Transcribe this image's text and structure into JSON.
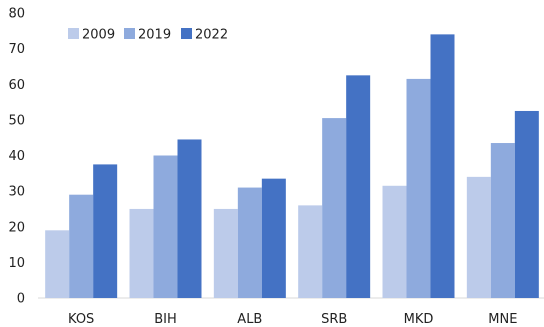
{
  "chart_data": {
    "type": "bar",
    "title": "",
    "xlabel": "",
    "ylabel": "",
    "categories": [
      "KOS",
      "BIH",
      "ALB",
      "SRB",
      "MKD",
      "MNE"
    ],
    "series": [
      {
        "name": "2009",
        "values": [
          19,
          25,
          25,
          26,
          31.5,
          34
        ],
        "color": "#bccbea"
      },
      {
        "name": "2019",
        "values": [
          29,
          40,
          31,
          50.5,
          61.5,
          43.5
        ],
        "color": "#8eaadd"
      },
      {
        "name": "2022",
        "values": [
          37.5,
          44.5,
          33.5,
          62.5,
          74,
          52.5
        ],
        "color": "#4472c4"
      }
    ],
    "ylim": [
      0,
      80
    ],
    "yticks": [
      0,
      10,
      20,
      30,
      40,
      50,
      60,
      70,
      80
    ],
    "grid": false,
    "legend_position": "top-left"
  }
}
